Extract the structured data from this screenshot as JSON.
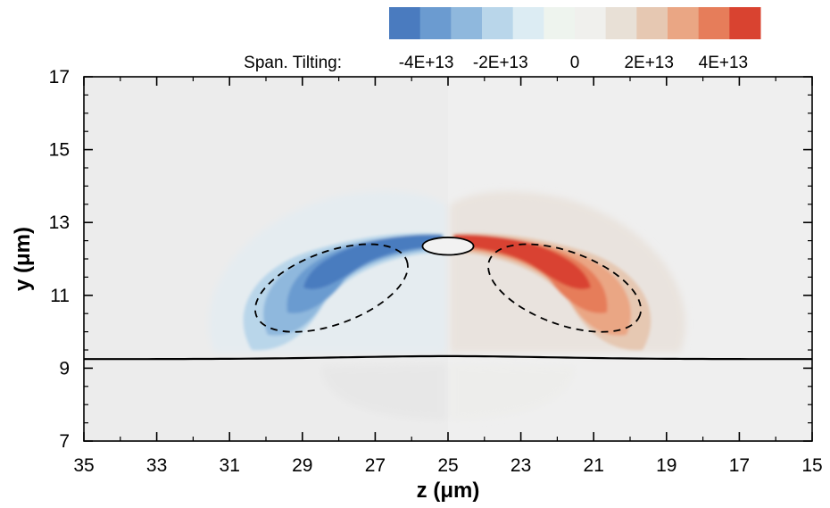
{
  "chart_data": {
    "type": "heatmap",
    "xlabel": "z (μm)",
    "ylabel": "y (μm)",
    "xlim": [
      35,
      15
    ],
    "ylim": [
      7,
      17
    ],
    "x_ticks": [
      "35",
      "33",
      "31",
      "29",
      "27",
      "25",
      "23",
      "21",
      "19",
      "17",
      "15"
    ],
    "y_ticks": [
      "7",
      "9",
      "11",
      "13",
      "15",
      "17"
    ],
    "grid": false,
    "colorbar": {
      "label": "Span. Tilting:",
      "tick_labels": [
        "-4E+13",
        "-2E+13",
        "0",
        "2E+13",
        "4E+13"
      ],
      "range": [
        -50000000000000,
        50000000000000
      ],
      "placement": "top",
      "colors": [
        "#4a7bbf",
        "#6b9bd0",
        "#8fb8dd",
        "#b9d6ea",
        "#dcecf3",
        "#eef4ee",
        "#f0f0ed",
        "#e8e0d6",
        "#e6c8b2",
        "#eaa684",
        "#e67d5a",
        "#d94330"
      ]
    },
    "background_color": "#ececec",
    "regions": [
      {
        "sign": "negative",
        "peak": -45000000000000.0,
        "z_range": [
          25.4,
          30.5
        ],
        "y_range": [
          9.6,
          12.7
        ]
      },
      {
        "sign": "positive",
        "peak": 45000000000000.0,
        "z_range": [
          19.5,
          24.6
        ],
        "y_range": [
          9.6,
          12.7
        ]
      }
    ],
    "interface_line_y": 9.25,
    "dashed_contours": [
      {
        "center_z": 28.2,
        "center_y": 11.2,
        "radius_z": 2.0,
        "radius_y": 1.0
      },
      {
        "center_z": 21.8,
        "center_y": 11.2,
        "radius_z": 2.0,
        "radius_y": 1.0
      }
    ],
    "solid_contour": {
      "center_z": 25.0,
      "center_y": 12.35,
      "radius_z": 0.35,
      "radius_y": 0.12
    }
  }
}
